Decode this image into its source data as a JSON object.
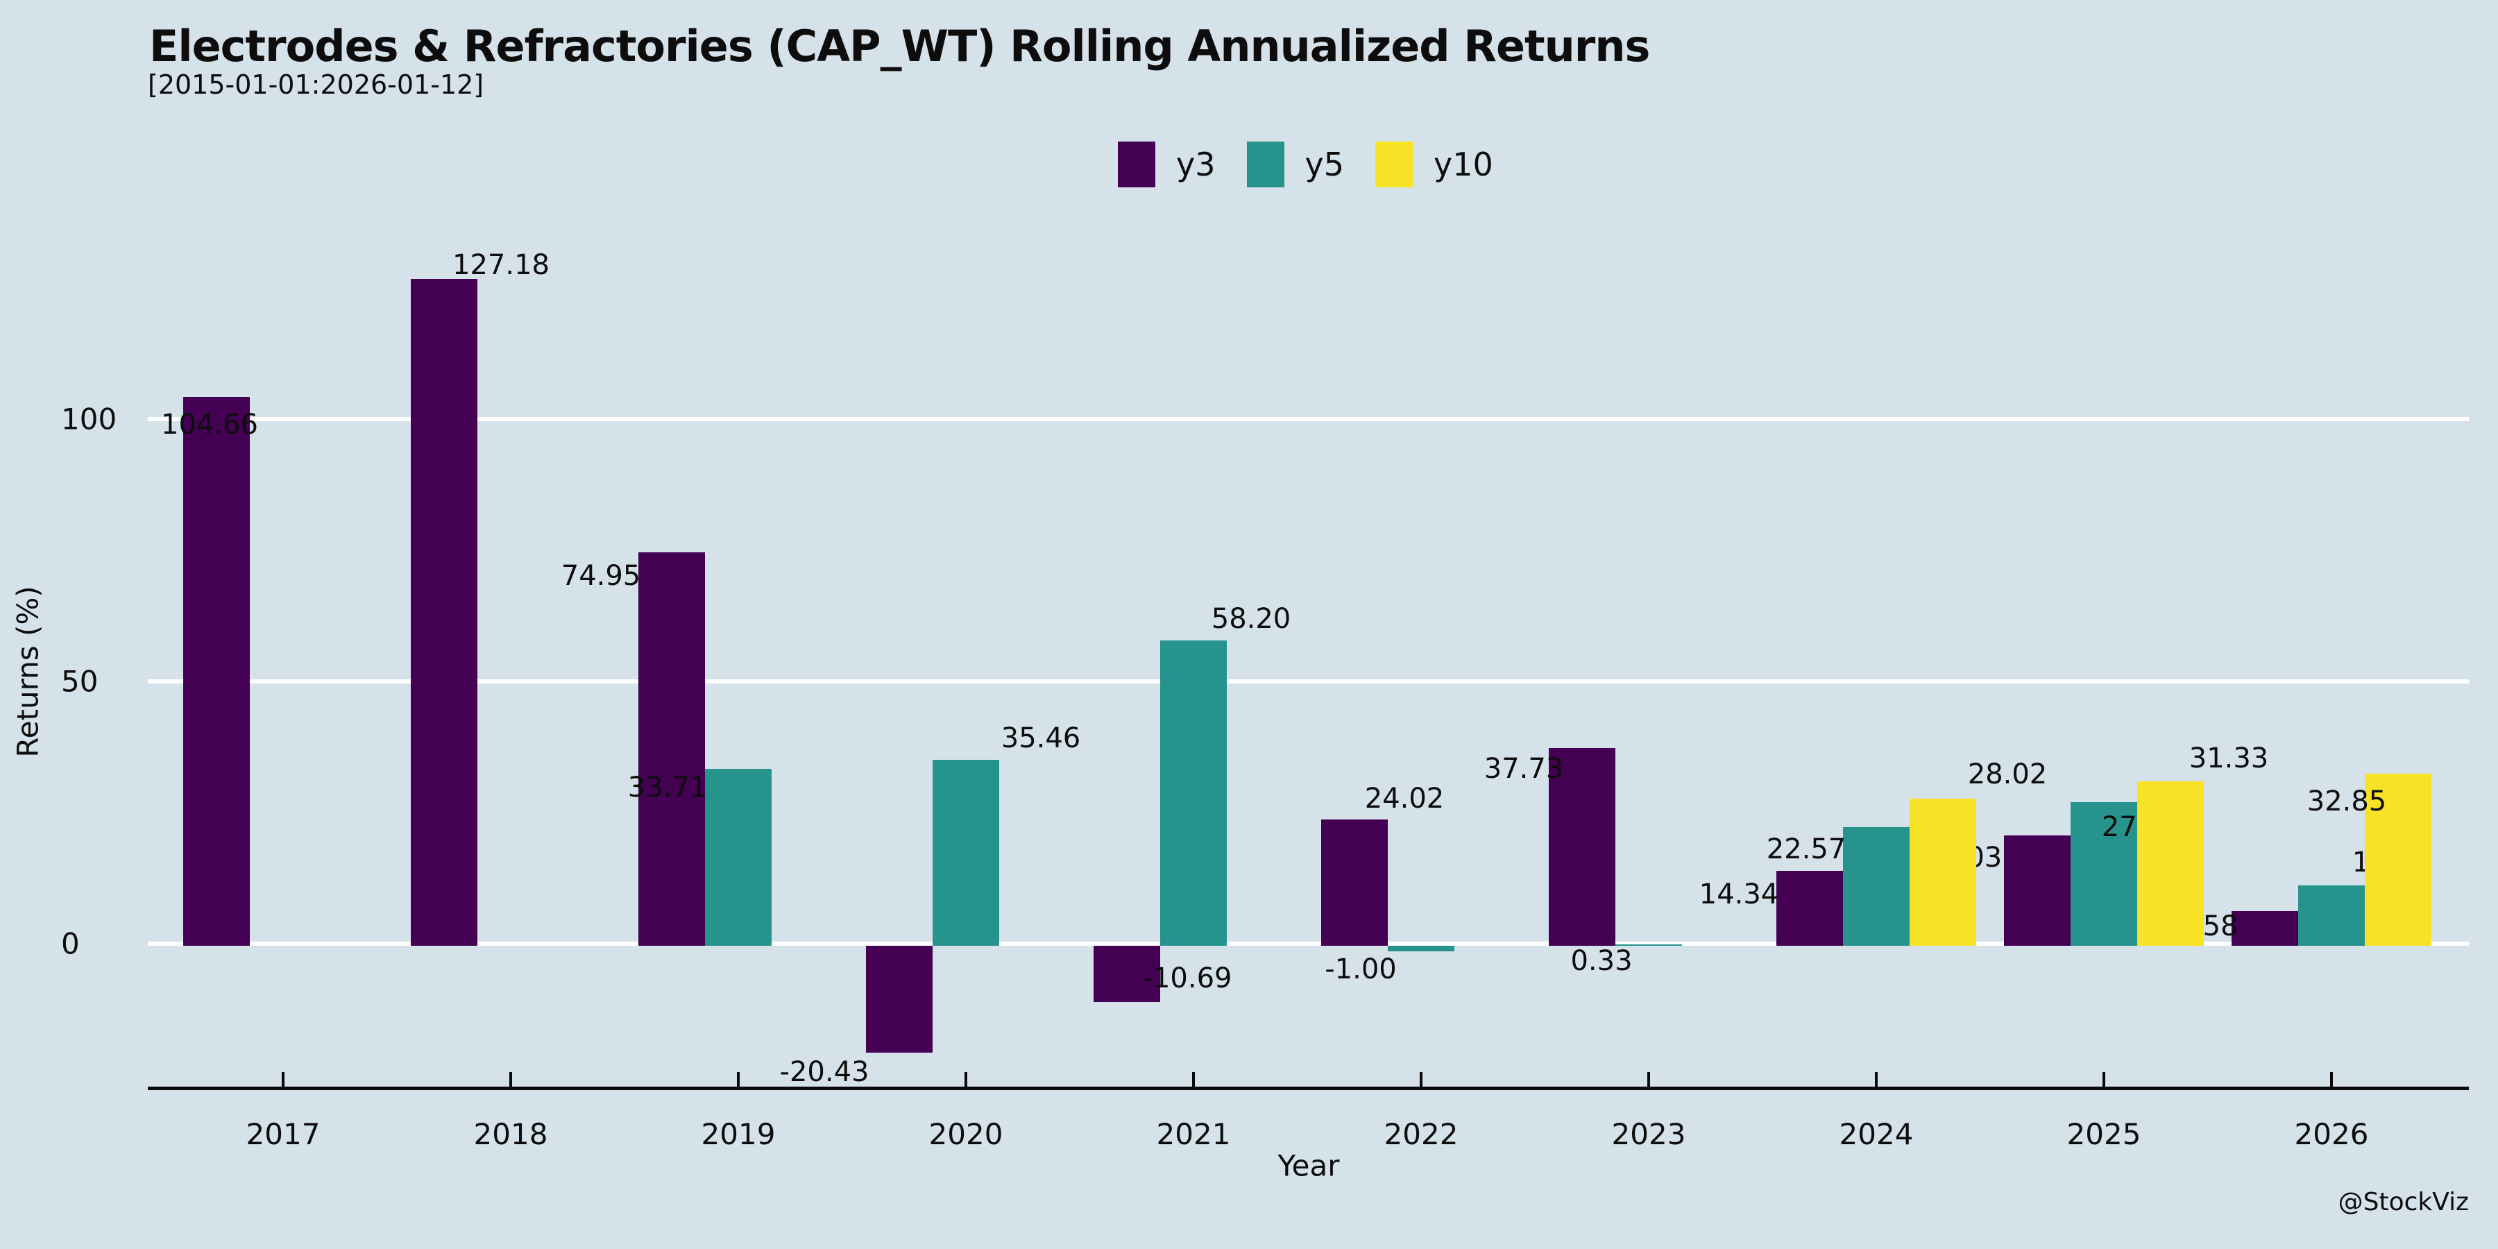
{
  "chart_data": {
    "type": "bar",
    "title": "Electrodes & Refractories (CAP_WT) Rolling Annualized Returns",
    "subtitle": "[2015-01-01:2026-01-12]",
    "xlabel": "Year",
    "ylabel": "Returns (%)",
    "watermark": "@StockViz",
    "categories": [
      "2017",
      "2018",
      "2019",
      "2020",
      "2021",
      "2022",
      "2023",
      "2024",
      "2025",
      "2026"
    ],
    "yticks": [
      0,
      50,
      100
    ],
    "ylim": [
      -28,
      145
    ],
    "grid": "horizontal-white-lines",
    "legend_position": "top-center",
    "background_color": "#d6e2e9",
    "series": [
      {
        "name": "y3",
        "color": "#440154",
        "values": [
          104.66,
          127.18,
          74.95,
          -20.43,
          -10.69,
          24.02,
          37.73,
          14.34,
          21.03,
          6.58
        ],
        "labels": [
          "104.66",
          "127.18",
          "74.95",
          "-20.43",
          "-10.69",
          "24.02",
          "37.73",
          "14.34",
          "21.03",
          "6.58"
        ],
        "label_offsets": [
          [
            -10,
            40
          ],
          [
            82,
            -20
          ],
          [
            -102,
            34
          ],
          [
            -108,
            28
          ],
          [
            87,
            -34
          ],
          [
            72,
            -30
          ],
          [
            -84,
            30
          ],
          [
            -102,
            34
          ],
          [
            -108,
            32
          ],
          [
            -83,
            22
          ]
        ]
      },
      {
        "name": "y5",
        "color": "#26938c",
        "values": [
          null,
          null,
          33.71,
          35.46,
          58.2,
          -1.0,
          0.33,
          22.57,
          27.32,
          11.56
        ],
        "labels": [
          null,
          null,
          "33.71",
          "35.46",
          "58.20",
          "-1.00",
          "0.33",
          "22.57",
          "27.32",
          "11.56"
        ],
        "label_offsets": [
          null,
          null,
          [
            -102,
            27
          ],
          [
            108,
            -31
          ],
          [
            83,
            -31
          ],
          [
            -87,
            26
          ],
          [
            -68,
            24
          ],
          [
            -101,
            32
          ],
          [
            54,
            36
          ],
          [
            87,
            -33
          ]
        ]
      },
      {
        "name": "y10",
        "color": "#f7e225",
        "values": [
          null,
          null,
          null,
          null,
          null,
          null,
          null,
          28.02,
          31.33,
          32.85
        ],
        "labels": [
          null,
          null,
          null,
          null,
          null,
          null,
          null,
          "28.02",
          "31.33",
          "32.85"
        ],
        "label_offsets": [
          null,
          null,
          null,
          null,
          null,
          null,
          null,
          [
            93,
            -35
          ],
          [
            84,
            -33
          ],
          [
            -74,
            40
          ]
        ]
      }
    ]
  }
}
